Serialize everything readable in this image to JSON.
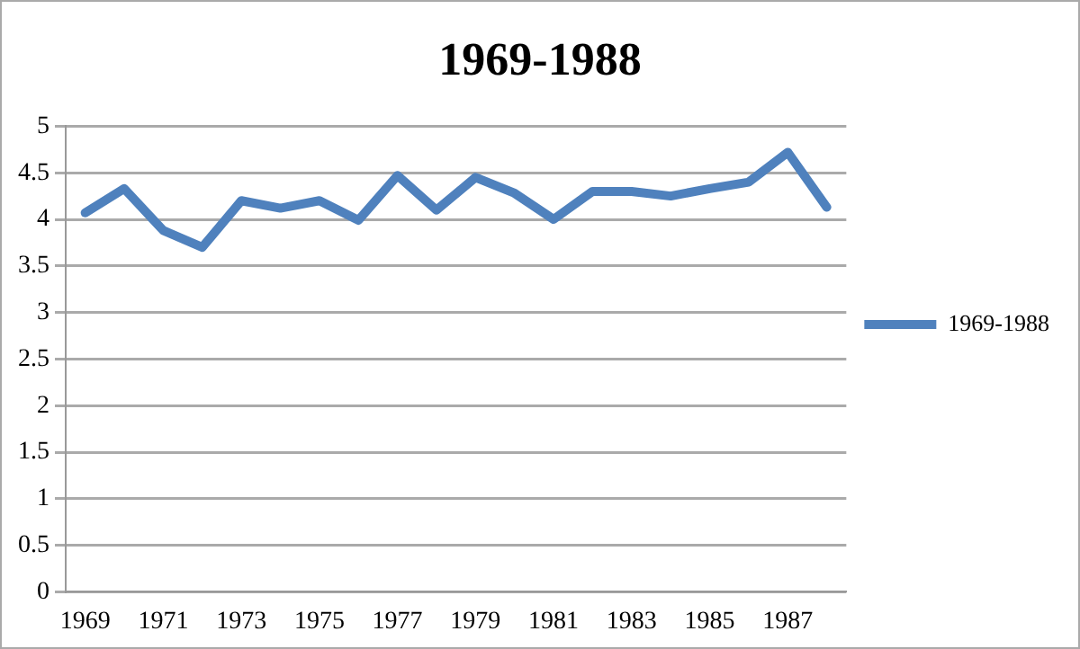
{
  "chart_data": {
    "type": "line",
    "title": "1969-1988",
    "categories": [
      "1969",
      null,
      "1971",
      null,
      "1973",
      null,
      "1975",
      null,
      "1977",
      null,
      "1979",
      null,
      "1981",
      null,
      "1983",
      null,
      "1985",
      null,
      "1987",
      null
    ],
    "series": [
      {
        "name": "1969-1988",
        "color": "#4f81bd",
        "values": [
          4.07,
          4.33,
          3.88,
          3.7,
          4.2,
          4.12,
          4.2,
          3.99,
          4.47,
          4.1,
          4.45,
          4.28,
          4.0,
          4.3,
          4.3,
          4.25,
          4.33,
          4.4,
          4.72,
          4.13
        ]
      }
    ],
    "ylim": [
      0,
      5
    ],
    "yticks": [
      0,
      0.5,
      1,
      1.5,
      2,
      2.5,
      3,
      3.5,
      4,
      4.5,
      5
    ],
    "grid": "y",
    "legend": "right",
    "marker": "none",
    "line_style": "solid"
  }
}
